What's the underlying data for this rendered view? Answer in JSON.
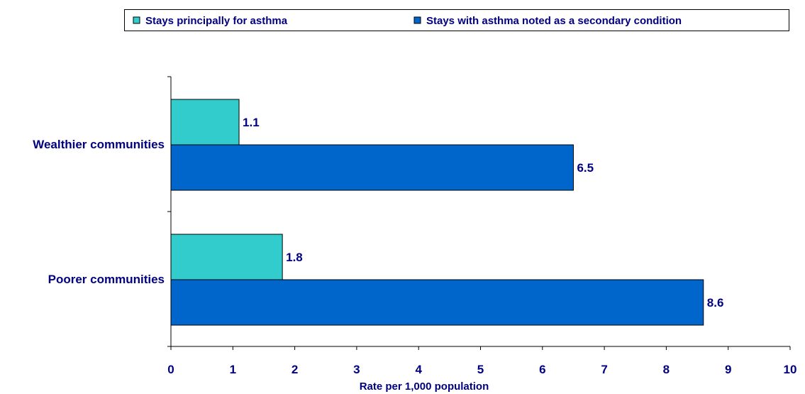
{
  "chart_data": {
    "type": "bar",
    "orientation": "horizontal",
    "categories": [
      "Wealthier communities",
      "Poorer communities"
    ],
    "series": [
      {
        "name": "Stays principally for asthma",
        "values": [
          1.1,
          1.8
        ],
        "color": "#33CCCC"
      },
      {
        "name": "Stays with asthma noted as a secondary condition",
        "values": [
          6.5,
          8.6
        ],
        "color": "#0066CC"
      }
    ],
    "data_labels": [
      [
        "1.1",
        "1.8"
      ],
      [
        "6.5",
        "8.6"
      ]
    ],
    "x_ticks": [
      "0",
      "1",
      "2",
      "3",
      "4",
      "5",
      "6",
      "7",
      "8",
      "9",
      "10"
    ],
    "xlabel": "Rate per 1,000 population",
    "ylabel": "",
    "title": "",
    "xlim": [
      0,
      10
    ],
    "grid": false,
    "legend_position": "top",
    "colors": {
      "text": "#000080",
      "category_text": "#000080",
      "axis": "#000000"
    }
  }
}
